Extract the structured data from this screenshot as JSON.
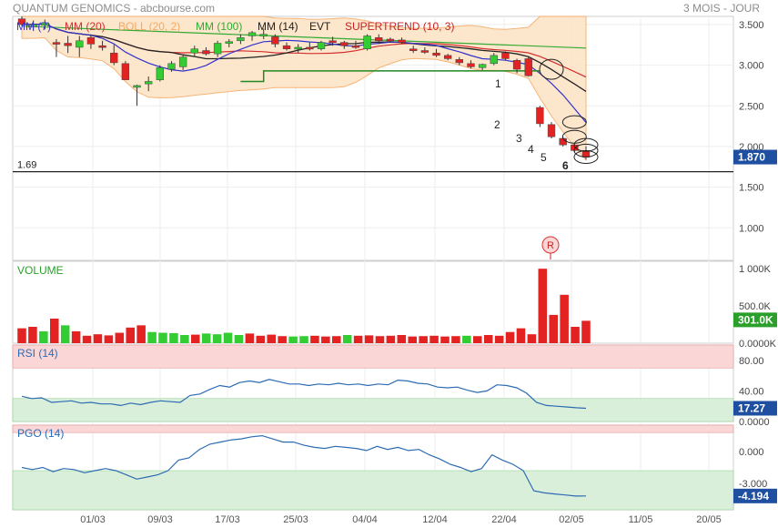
{
  "header": {
    "title": "QUANTUM GENOMICS - abcbourse.com",
    "period": "3 MOIS - JOUR"
  },
  "colors": {
    "up": "#33cc33",
    "down": "#e32222",
    "mm7": "#3333cc",
    "mm20": "#d32f2f",
    "mm14": "#222222",
    "mm100": "#33aa33",
    "evt": "#228822",
    "supertrend": "#cc2222",
    "bollinger_fill": "#fde3c4",
    "bollinger_line": "#f5a860",
    "rsi_line": "#2d6bb3",
    "pgo_line": "#2d6bb3",
    "zone_red": "#fbd6d6",
    "zone_green": "#d9efd9",
    "value_box": "#1f4fa0",
    "volume_box": "#2aa02a"
  },
  "chart_data": [
    {
      "type": "candlestick",
      "legend": [
        "MM (7)",
        "MM (20)",
        "BOLL (20, 2)",
        "MM (100)",
        "MM (14)",
        "EVT",
        "SUPERTREND (10, 3)"
      ],
      "ylim": [
        0.6,
        3.6
      ],
      "y_ticks": [
        "3.500",
        "3.000",
        "2.500",
        "2.000",
        "1.500",
        "1.000"
      ],
      "x_tick_labels": [
        "01/03",
        "09/03",
        "17/03",
        "25/03",
        "04/04",
        "12/04",
        "22/04",
        "02/05",
        "11/05",
        "20/05"
      ],
      "last_value": "1.870",
      "support_level": "1.69",
      "annotations": [
        "1",
        "2",
        "3",
        "4",
        "5",
        "6"
      ],
      "marker": "R",
      "candles": [
        {
          "o": 3.57,
          "h": 3.6,
          "l": 3.48,
          "c": 3.5
        },
        {
          "o": 3.47,
          "h": 3.55,
          "l": 3.42,
          "c": 3.5
        },
        {
          "o": 3.49,
          "h": 3.56,
          "l": 3.44,
          "c": 3.52
        },
        {
          "o": 3.28,
          "h": 3.32,
          "l": 3.1,
          "c": 3.26
        },
        {
          "o": 3.27,
          "h": 3.36,
          "l": 3.15,
          "c": 3.24
        },
        {
          "o": 3.22,
          "h": 3.36,
          "l": 3.1,
          "c": 3.3
        },
        {
          "o": 3.34,
          "h": 3.38,
          "l": 3.2,
          "c": 3.26
        },
        {
          "o": 3.24,
          "h": 3.3,
          "l": 3.18,
          "c": 3.22
        },
        {
          "o": 3.15,
          "h": 3.25,
          "l": 3.0,
          "c": 3.03
        },
        {
          "o": 3.02,
          "h": 3.05,
          "l": 2.82,
          "c": 2.82
        },
        {
          "o": 2.73,
          "h": 2.76,
          "l": 2.5,
          "c": 2.75
        },
        {
          "o": 2.77,
          "h": 2.86,
          "l": 2.68,
          "c": 2.8
        },
        {
          "o": 2.82,
          "h": 3.0,
          "l": 2.8,
          "c": 2.97
        },
        {
          "o": 2.95,
          "h": 3.05,
          "l": 2.92,
          "c": 3.02
        },
        {
          "o": 2.98,
          "h": 3.12,
          "l": 2.94,
          "c": 3.1
        },
        {
          "o": 3.15,
          "h": 3.24,
          "l": 3.1,
          "c": 3.2
        },
        {
          "o": 3.18,
          "h": 3.22,
          "l": 3.12,
          "c": 3.14
        },
        {
          "o": 3.14,
          "h": 3.3,
          "l": 3.1,
          "c": 3.27
        },
        {
          "o": 3.27,
          "h": 3.32,
          "l": 3.22,
          "c": 3.29
        },
        {
          "o": 3.3,
          "h": 3.38,
          "l": 3.26,
          "c": 3.34
        },
        {
          "o": 3.36,
          "h": 3.42,
          "l": 3.3,
          "c": 3.4
        },
        {
          "o": 3.37,
          "h": 3.45,
          "l": 3.32,
          "c": 3.38
        },
        {
          "o": 3.35,
          "h": 3.38,
          "l": 3.22,
          "c": 3.26
        },
        {
          "o": 3.24,
          "h": 3.28,
          "l": 3.18,
          "c": 3.2
        },
        {
          "o": 3.2,
          "h": 3.26,
          "l": 3.15,
          "c": 3.22
        },
        {
          "o": 3.22,
          "h": 3.28,
          "l": 3.18,
          "c": 3.2
        },
        {
          "o": 3.2,
          "h": 3.3,
          "l": 3.18,
          "c": 3.28
        },
        {
          "o": 3.3,
          "h": 3.35,
          "l": 3.24,
          "c": 3.28
        },
        {
          "o": 3.28,
          "h": 3.3,
          "l": 3.2,
          "c": 3.24
        },
        {
          "o": 3.24,
          "h": 3.3,
          "l": 3.2,
          "c": 3.22
        },
        {
          "o": 3.2,
          "h": 3.38,
          "l": 3.18,
          "c": 3.36
        },
        {
          "o": 3.34,
          "h": 3.38,
          "l": 3.26,
          "c": 3.3
        },
        {
          "o": 3.32,
          "h": 3.34,
          "l": 3.28,
          "c": 3.3
        },
        {
          "o": 3.31,
          "h": 3.34,
          "l": 3.26,
          "c": 3.28
        },
        {
          "o": 3.2,
          "h": 3.24,
          "l": 3.15,
          "c": 3.18
        },
        {
          "o": 3.18,
          "h": 3.22,
          "l": 3.14,
          "c": 3.16
        },
        {
          "o": 3.15,
          "h": 3.2,
          "l": 3.1,
          "c": 3.12
        },
        {
          "o": 3.12,
          "h": 3.14,
          "l": 3.06,
          "c": 3.08
        },
        {
          "o": 3.07,
          "h": 3.1,
          "l": 3.0,
          "c": 3.03
        },
        {
          "o": 3.02,
          "h": 3.06,
          "l": 2.96,
          "c": 2.98
        },
        {
          "o": 2.97,
          "h": 3.02,
          "l": 2.94,
          "c": 3.01
        },
        {
          "o": 3.02,
          "h": 3.15,
          "l": 3.0,
          "c": 3.12
        },
        {
          "o": 3.15,
          "h": 3.17,
          "l": 3.06,
          "c": 3.08
        },
        {
          "o": 3.06,
          "h": 3.08,
          "l": 2.9,
          "c": 2.95
        },
        {
          "o": 3.08,
          "h": 3.1,
          "l": 2.86,
          "c": 2.87
        },
        {
          "o": 2.48,
          "h": 2.5,
          "l": 2.24,
          "c": 2.28
        },
        {
          "o": 2.27,
          "h": 2.3,
          "l": 2.1,
          "c": 2.12
        },
        {
          "o": 2.1,
          "h": 2.12,
          "l": 2.0,
          "c": 2.02
        },
        {
          "o": 2.02,
          "h": 2.04,
          "l": 1.93,
          "c": 1.95
        },
        {
          "o": 1.95,
          "h": 2.0,
          "l": 1.84,
          "c": 1.87
        }
      ]
    },
    {
      "type": "bar",
      "title": "VOLUME",
      "y_ticks": [
        "1 000K",
        "500.0K",
        "0.0000K"
      ],
      "ylim": [
        0,
        1100
      ],
      "last_value": "301.0K",
      "values": [
        200,
        220,
        160,
        330,
        240,
        160,
        100,
        120,
        105,
        140,
        210,
        240,
        150,
        140,
        135,
        110,
        115,
        130,
        120,
        140,
        110,
        130,
        100,
        115,
        95,
        90,
        95,
        100,
        90,
        95,
        110,
        100,
        105,
        95,
        100,
        110,
        90,
        95,
        100,
        90,
        95,
        100,
        95,
        110,
        100,
        150,
        200,
        120,
        1000,
        380,
        650,
        220,
        301
      ],
      "up": [
        false,
        false,
        true,
        false,
        true,
        false,
        false,
        false,
        false,
        false,
        false,
        false,
        true,
        true,
        true,
        true,
        false,
        true,
        true,
        true,
        true,
        false,
        false,
        false,
        false,
        true,
        true,
        false,
        false,
        false,
        true,
        false,
        false,
        false,
        false,
        false,
        false,
        false,
        false,
        false,
        false,
        true,
        false,
        false,
        false,
        false,
        false,
        false,
        false,
        false,
        false,
        false,
        false
      ]
    },
    {
      "type": "line",
      "title": "RSI (14)",
      "y_ticks": [
        "80.00",
        "40.00",
        "0.0000"
      ],
      "ylim": [
        0,
        100
      ],
      "last_value": "17.27",
      "values": [
        33,
        30,
        31,
        25,
        26,
        27,
        24,
        25,
        23,
        23,
        21,
        24,
        22,
        25,
        27,
        26,
        25,
        34,
        36,
        42,
        47,
        45,
        51,
        53,
        51,
        55,
        52,
        49,
        49,
        47,
        49,
        48,
        50,
        48,
        49,
        47,
        49,
        48,
        54,
        53,
        50,
        49,
        45,
        44,
        45,
        41,
        38,
        40,
        48,
        47,
        44,
        37,
        25,
        21,
        20,
        19,
        18,
        17.27
      ],
      "bands": {
        "upper": 70,
        "lower": 30
      }
    },
    {
      "type": "line",
      "title": "PGO (14)",
      "y_ticks": [
        "0.000",
        "-3.000"
      ],
      "ylim": [
        -5.5,
        2.5
      ],
      "last_value": "-4.194",
      "values": [
        -1.5,
        -1.7,
        -1.5,
        -1.9,
        -1.6,
        -1.7,
        -2.0,
        -1.8,
        -1.6,
        -1.8,
        -2.2,
        -2.6,
        -2.4,
        -2.2,
        -1.8,
        -0.8,
        -0.6,
        0.2,
        0.7,
        0.9,
        1.1,
        1.2,
        1.4,
        1.5,
        1.2,
        0.9,
        0.9,
        0.6,
        0.4,
        0.3,
        0.5,
        0.4,
        0.3,
        0.1,
        0.5,
        0.2,
        0.4,
        0.1,
        0.2,
        -0.3,
        -0.7,
        -1.2,
        -1.5,
        -1.9,
        -1.6,
        -0.3,
        -0.8,
        -1.2,
        -1.8,
        -3.7,
        -3.9,
        -4.0,
        -4.1,
        -4.2,
        -4.194
      ],
      "bands": {
        "upper": 1.8,
        "lower": -1.8
      }
    }
  ]
}
